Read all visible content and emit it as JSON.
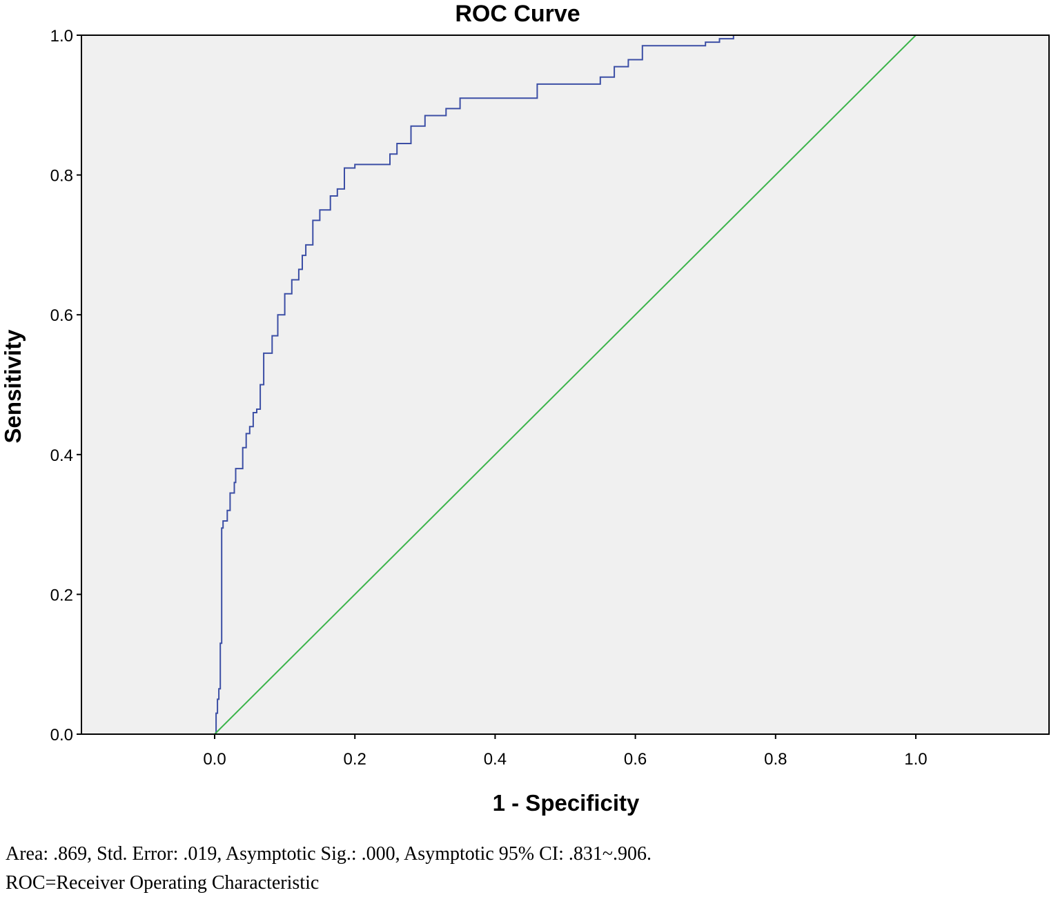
{
  "chart_data": {
    "type": "line",
    "title": "ROC Curve",
    "xlabel": "1 - Specificity",
    "ylabel": "Sensitivity",
    "xlim": [
      -0.19,
      1.19
    ],
    "ylim": [
      0.0,
      1.0
    ],
    "xticks": [
      "0.0",
      "0.2",
      "0.4",
      "0.6",
      "0.8",
      "1.0"
    ],
    "yticks": [
      "0.0",
      "0.2",
      "0.4",
      "0.6",
      "0.8",
      "1.0"
    ],
    "grid": false,
    "background_color": "#f0f0f0",
    "series": [
      {
        "color": "#3b4ea5",
        "step": true,
        "x": [
          0.0,
          0.002,
          0.004,
          0.006,
          0.008,
          0.01,
          0.012,
          0.018,
          0.022,
          0.028,
          0.03,
          0.04,
          0.045,
          0.05,
          0.055,
          0.06,
          0.065,
          0.07,
          0.082,
          0.09,
          0.1,
          0.11,
          0.12,
          0.125,
          0.13,
          0.14,
          0.15,
          0.165,
          0.175,
          0.185,
          0.2,
          0.25,
          0.26,
          0.28,
          0.3,
          0.33,
          0.35,
          0.46,
          0.55,
          0.57,
          0.59,
          0.61,
          0.7,
          0.72,
          0.74,
          1.0
        ],
        "y": [
          0.0,
          0.03,
          0.05,
          0.065,
          0.13,
          0.295,
          0.305,
          0.32,
          0.345,
          0.36,
          0.38,
          0.41,
          0.43,
          0.44,
          0.46,
          0.465,
          0.5,
          0.545,
          0.57,
          0.6,
          0.63,
          0.65,
          0.665,
          0.685,
          0.7,
          0.735,
          0.75,
          0.77,
          0.78,
          0.81,
          0.815,
          0.83,
          0.845,
          0.87,
          0.885,
          0.895,
          0.91,
          0.93,
          0.94,
          0.955,
          0.965,
          0.985,
          0.99,
          0.995,
          1.0,
          1.0
        ]
      },
      {
        "color": "#3cb44b",
        "step": false,
        "x": [
          0.0,
          1.0
        ],
        "y": [
          0.0,
          1.0
        ]
      }
    ]
  },
  "caption": {
    "line1": "Area: .869, Std. Error: .019, Asymptotic Sig.: .000, Asymptotic 95% CI: .831~.906.",
    "line2": "ROC=Receiver Operating Characteristic"
  }
}
